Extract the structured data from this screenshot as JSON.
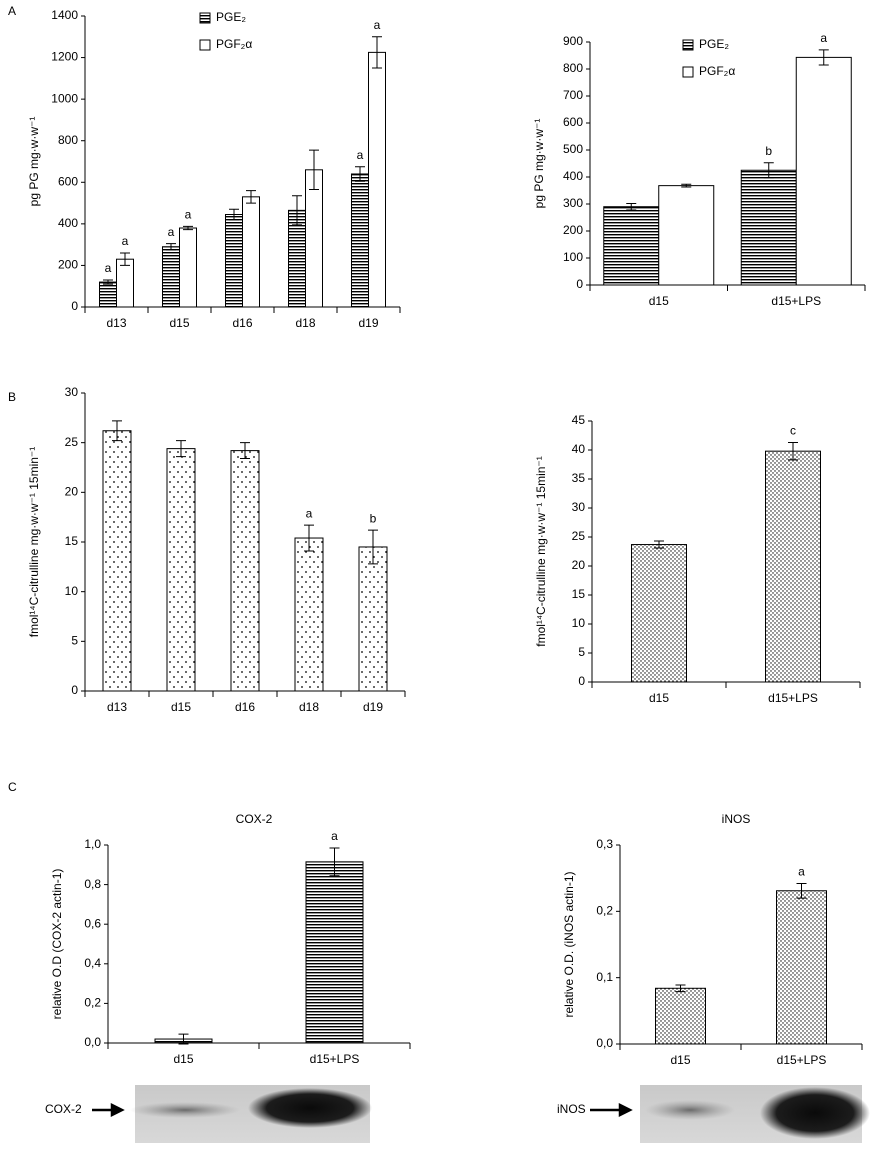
{
  "panel_labels": [
    "A",
    "B",
    "C"
  ],
  "blot_labels": [
    "COX-2",
    "iNOS"
  ],
  "chart_data": [
    {
      "type": "bar",
      "y_label": "pg PG mg·w·w⁻¹",
      "categories": [
        "d13",
        "d15",
        "d16",
        "d18",
        "d19"
      ],
      "series": [
        {
          "name": "PGE₂",
          "pattern": "hstripes",
          "color": "#000000",
          "values": [
            120,
            290,
            445,
            465,
            640
          ],
          "errors": [
            10,
            15,
            25,
            70,
            35
          ],
          "annotations": [
            "a",
            "a",
            null,
            null,
            "a"
          ]
        },
        {
          "name": "PGF₂α",
          "pattern": "none",
          "color": "#000000",
          "values": [
            230,
            380,
            530,
            660,
            1225
          ],
          "errors": [
            30,
            8,
            30,
            95,
            75
          ],
          "annotations": [
            "a",
            "a",
            null,
            null,
            "a"
          ]
        }
      ],
      "ylim": [
        0,
        1400
      ],
      "yticks": [
        0,
        200,
        400,
        600,
        800,
        1000,
        1200,
        1400
      ],
      "legend": true
    },
    {
      "type": "bar",
      "y_label": "pg PG mg·w·w⁻¹",
      "categories": [
        "d15",
        "d15+LPS"
      ],
      "series": [
        {
          "name": "PGE₂",
          "pattern": "hstripes",
          "color": "#000000",
          "values": [
            290,
            425
          ],
          "errors": [
            12,
            28
          ],
          "annotations": [
            null,
            "b"
          ]
        },
        {
          "name": "PGF₂α",
          "pattern": "none",
          "color": "#000000",
          "values": [
            368,
            843
          ],
          "errors": [
            5,
            28
          ],
          "annotations": [
            null,
            "a"
          ]
        }
      ],
      "ylim": [
        0,
        900
      ],
      "yticks": [
        0,
        100,
        200,
        300,
        400,
        500,
        600,
        700,
        800,
        900
      ],
      "legend": true
    },
    {
      "type": "bar",
      "y_label": "fmol¹⁴C-citrulline mg·w·w⁻¹ 15min⁻¹",
      "categories": [
        "d13",
        "d15",
        "d16",
        "d18",
        "d19"
      ],
      "series": [
        {
          "pattern": "dots",
          "color": "#000000",
          "values": [
            26.2,
            24.4,
            24.2,
            15.4,
            14.5
          ],
          "errors": [
            1.0,
            0.8,
            0.8,
            1.3,
            1.7
          ],
          "annotations": [
            null,
            null,
            null,
            "a",
            "b"
          ]
        }
      ],
      "ylim": [
        0,
        30
      ],
      "yticks": [
        0,
        5,
        10,
        15,
        20,
        25,
        30
      ]
    },
    {
      "type": "bar",
      "y_label": "fmol¹⁴C-citrulline mg·w·w⁻¹ 15min⁻¹",
      "categories": [
        "d15",
        "d15+LPS"
      ],
      "series": [
        {
          "pattern": "dots-mixed",
          "color": "#000000",
          "values": [
            23.7,
            39.8
          ],
          "errors": [
            0.6,
            1.5
          ],
          "annotations": [
            null,
            "c"
          ]
        }
      ],
      "ylim": [
        0,
        45
      ],
      "yticks": [
        0,
        5,
        10,
        15,
        20,
        25,
        30,
        35,
        40,
        45
      ]
    },
    {
      "type": "bar",
      "title": "COX-2",
      "y_label": "relative O.D (COX-2 actin-1)",
      "categories": [
        "d15",
        "d15+LPS"
      ],
      "series": [
        {
          "pattern": "hstripes",
          "color": "#000000",
          "values": [
            0.02,
            0.915
          ],
          "errors": [
            0.025,
            0.07
          ],
          "annotations": [
            null,
            "a"
          ]
        }
      ],
      "ylim": [
        0,
        1
      ],
      "yticks": [
        {
          "value": 0,
          "label": "0,0"
        },
        {
          "value": 0.2,
          "label": "0,2"
        },
        {
          "value": 0.4,
          "label": "0,4"
        },
        {
          "value": 0.6,
          "label": "0,6"
        },
        {
          "value": 0.8,
          "label": "0,8"
        },
        {
          "value": 1,
          "label": "1,0"
        }
      ]
    },
    {
      "type": "bar",
      "title": "iNOS",
      "y_label": "relative O.D. (iNOS actin-1)",
      "categories": [
        "d15",
        "d15+LPS"
      ],
      "series": [
        {
          "pattern": "dots-mixed",
          "color": "#000000",
          "values": [
            0.084,
            0.231
          ],
          "errors": [
            0.005,
            0.011
          ],
          "annotations": [
            null,
            "a"
          ]
        }
      ],
      "ylim": [
        0,
        0.3
      ],
      "yticks": [
        {
          "value": 0,
          "label": "0,0"
        },
        {
          "value": 0.1,
          "label": "0,1"
        },
        {
          "value": 0.2,
          "label": "0,2"
        },
        {
          "value": 0.3,
          "label": "0,3"
        }
      ]
    }
  ]
}
